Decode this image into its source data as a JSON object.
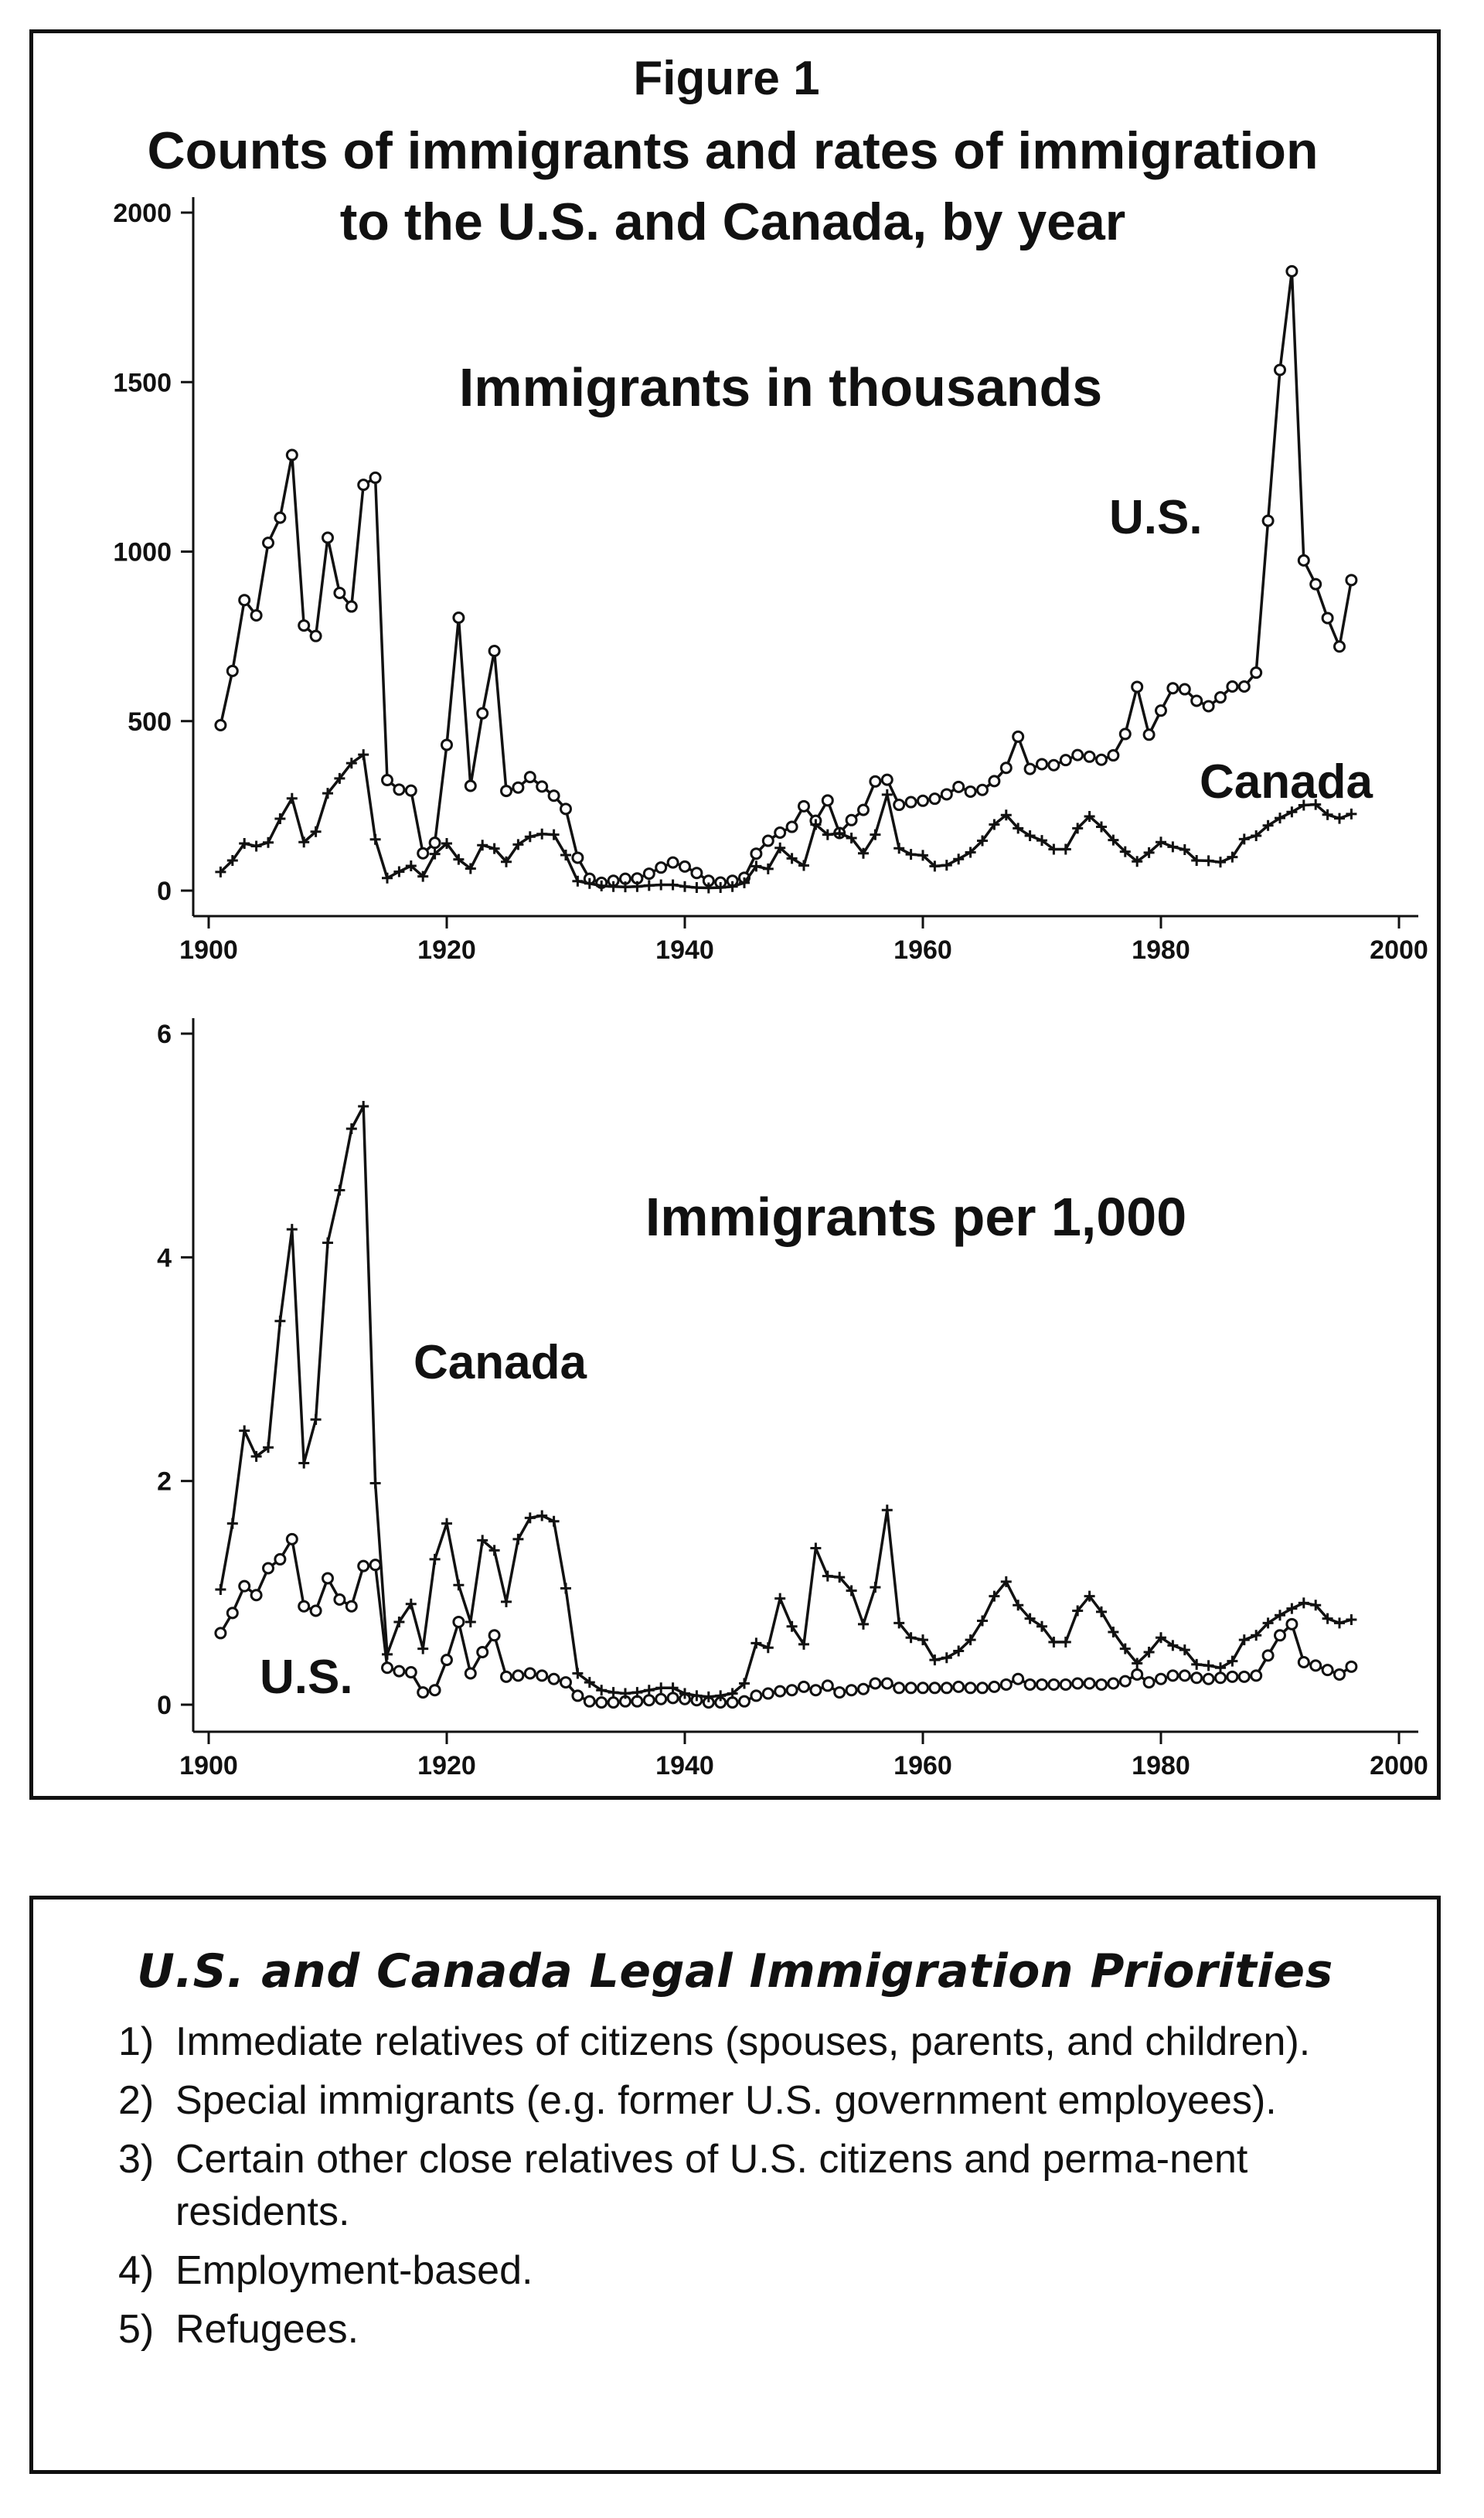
{
  "figure": {
    "title_line1": "Figure 1",
    "title_line2": "Counts of immigrants and rates of immigration",
    "title_line3": "to the U.S. and Canada, by year"
  },
  "chart_data": [
    {
      "type": "line",
      "title": "Immigrants in thousands",
      "xlim": [
        1900,
        2000
      ],
      "ylim": [
        0,
        2000
      ],
      "xticks": [
        "1900",
        "1920",
        "1940",
        "1960",
        "1980",
        "2000"
      ],
      "yticks": [
        "0",
        "500",
        "1000",
        "1500",
        "2000"
      ],
      "grid": false,
      "series": [
        {
          "name": "U.S.",
          "marker": "circle",
          "x": [
            1901,
            1902,
            1903,
            1904,
            1905,
            1906,
            1907,
            1908,
            1909,
            1910,
            1911,
            1912,
            1913,
            1914,
            1915,
            1916,
            1917,
            1918,
            1919,
            1920,
            1921,
            1922,
            1923,
            1924,
            1925,
            1926,
            1927,
            1928,
            1929,
            1930,
            1931,
            1932,
            1933,
            1934,
            1935,
            1936,
            1937,
            1938,
            1939,
            1940,
            1941,
            1942,
            1943,
            1944,
            1945,
            1946,
            1947,
            1948,
            1949,
            1950,
            1951,
            1952,
            1953,
            1954,
            1955,
            1956,
            1957,
            1958,
            1959,
            1960,
            1961,
            1962,
            1963,
            1964,
            1965,
            1966,
            1967,
            1968,
            1969,
            1970,
            1971,
            1972,
            1973,
            1974,
            1975,
            1976,
            1977,
            1978,
            1979,
            1980,
            1981,
            1982,
            1983,
            1984,
            1985,
            1986,
            1987,
            1988,
            1989,
            1990,
            1991,
            1992,
            1993,
            1994,
            1995,
            1996
          ],
          "y": [
            488,
            648,
            857,
            812,
            1026,
            1100,
            1285,
            782,
            751,
            1041,
            878,
            838,
            1197,
            1218,
            326,
            298,
            295,
            110,
            141,
            430,
            805,
            309,
            523,
            707,
            294,
            304,
            335,
            307,
            280,
            241,
            97,
            35,
            23,
            29,
            35,
            36,
            50,
            68,
            83,
            71,
            52,
            29,
            24,
            29,
            38,
            109,
            147,
            171,
            188,
            249,
            206,
            266,
            170,
            208,
            238,
            322,
            327,
            253,
            261,
            265,
            271,
            284,
            306,
            292,
            297,
            323,
            362,
            454,
            359,
            373,
            370,
            385,
            400,
            395,
            386,
            399,
            462,
            601,
            460,
            531,
            597,
            594,
            560,
            544,
            570,
            602,
            602,
            643,
            1091,
            1536,
            1827,
            974,
            904,
            804,
            720,
            916
          ]
        },
        {
          "name": "Canada",
          "marker": "plus",
          "x": [
            1901,
            1902,
            1903,
            1904,
            1905,
            1906,
            1907,
            1908,
            1909,
            1910,
            1911,
            1912,
            1913,
            1914,
            1915,
            1916,
            1917,
            1918,
            1919,
            1920,
            1921,
            1922,
            1923,
            1924,
            1925,
            1926,
            1927,
            1928,
            1929,
            1930,
            1931,
            1932,
            1933,
            1934,
            1935,
            1936,
            1937,
            1938,
            1939,
            1940,
            1941,
            1942,
            1943,
            1944,
            1945,
            1946,
            1947,
            1948,
            1949,
            1950,
            1951,
            1952,
            1953,
            1954,
            1955,
            1956,
            1957,
            1958,
            1959,
            1960,
            1961,
            1962,
            1963,
            1964,
            1965,
            1966,
            1967,
            1968,
            1969,
            1970,
            1971,
            1972,
            1973,
            1974,
            1975,
            1976,
            1977,
            1978,
            1979,
            1980,
            1981,
            1982,
            1983,
            1984,
            1985,
            1986,
            1987,
            1988,
            1989,
            1990,
            1991,
            1992,
            1993,
            1994,
            1995,
            1996
          ],
          "y": [
            55,
            89,
            139,
            131,
            142,
            212,
            272,
            143,
            174,
            287,
            331,
            376,
            401,
            151,
            37,
            56,
            73,
            42,
            108,
            139,
            92,
            65,
            134,
            124,
            85,
            136,
            159,
            167,
            165,
            105,
            28,
            21,
            14,
            12,
            11,
            12,
            15,
            17,
            17,
            12,
            9,
            8,
            9,
            12,
            23,
            72,
            64,
            126,
            95,
            74,
            195,
            165,
            169,
            155,
            110,
            165,
            283,
            125,
            107,
            104,
            72,
            75,
            93,
            113,
            147,
            195,
            223,
            184,
            162,
            148,
            122,
            122,
            184,
            219,
            188,
            149,
            115,
            86,
            112,
            143,
            129,
            121,
            89,
            88,
            84,
            99,
            152,
            162,
            192,
            214,
            232,
            252,
            254,
            224,
            213,
            226
          ]
        }
      ]
    },
    {
      "type": "line",
      "title": "Immigrants per 1,000",
      "xlim": [
        1900,
        2000
      ],
      "ylim": [
        0,
        6
      ],
      "xticks": [
        "1900",
        "1920",
        "1940",
        "1960",
        "1980",
        "2000"
      ],
      "yticks": [
        "0",
        "2",
        "4",
        "6"
      ],
      "grid": false,
      "series": [
        {
          "name": "U.S.",
          "marker": "circle",
          "x": [
            1901,
            1902,
            1903,
            1904,
            1905,
            1906,
            1907,
            1908,
            1909,
            1910,
            1911,
            1912,
            1913,
            1914,
            1915,
            1916,
            1917,
            1918,
            1919,
            1920,
            1921,
            1922,
            1923,
            1924,
            1925,
            1926,
            1927,
            1928,
            1929,
            1930,
            1931,
            1932,
            1933,
            1934,
            1935,
            1936,
            1937,
            1938,
            1939,
            1940,
            1941,
            1942,
            1943,
            1944,
            1945,
            1946,
            1947,
            1948,
            1949,
            1950,
            1951,
            1952,
            1953,
            1954,
            1955,
            1956,
            1957,
            1958,
            1959,
            1960,
            1961,
            1962,
            1963,
            1964,
            1965,
            1966,
            1967,
            1968,
            1969,
            1970,
            1971,
            1972,
            1973,
            1974,
            1975,
            1976,
            1977,
            1978,
            1979,
            1980,
            1981,
            1982,
            1983,
            1984,
            1985,
            1986,
            1987,
            1988,
            1989,
            1990,
            1991,
            1992,
            1993,
            1994,
            1995,
            1996
          ],
          "y": [
            0.64,
            0.82,
            1.06,
            0.98,
            1.22,
            1.3,
            1.48,
            0.88,
            0.84,
            1.13,
            0.94,
            0.88,
            1.24,
            1.25,
            0.33,
            0.3,
            0.29,
            0.11,
            0.13,
            0.4,
            0.74,
            0.28,
            0.47,
            0.62,
            0.25,
            0.26,
            0.28,
            0.26,
            0.23,
            0.2,
            0.08,
            0.03,
            0.02,
            0.02,
            0.03,
            0.03,
            0.04,
            0.05,
            0.06,
            0.05,
            0.04,
            0.02,
            0.02,
            0.02,
            0.03,
            0.08,
            0.1,
            0.12,
            0.13,
            0.16,
            0.13,
            0.17,
            0.11,
            0.13,
            0.14,
            0.19,
            0.19,
            0.15,
            0.15,
            0.15,
            0.15,
            0.15,
            0.16,
            0.15,
            0.15,
            0.16,
            0.18,
            0.23,
            0.18,
            0.18,
            0.18,
            0.18,
            0.19,
            0.19,
            0.18,
            0.19,
            0.21,
            0.27,
            0.2,
            0.23,
            0.26,
            0.26,
            0.24,
            0.23,
            0.24,
            0.25,
            0.25,
            0.26,
            0.44,
            0.62,
            0.72,
            0.38,
            0.35,
            0.31,
            0.27,
            0.34
          ]
        },
        {
          "name": "Canada",
          "marker": "plus",
          "x": [
            1901,
            1902,
            1903,
            1904,
            1905,
            1906,
            1907,
            1908,
            1909,
            1910,
            1911,
            1912,
            1913,
            1914,
            1915,
            1916,
            1917,
            1918,
            1919,
            1920,
            1921,
            1922,
            1923,
            1924,
            1925,
            1926,
            1927,
            1928,
            1929,
            1930,
            1931,
            1932,
            1933,
            1934,
            1935,
            1936,
            1937,
            1938,
            1939,
            1940,
            1941,
            1942,
            1943,
            1944,
            1945,
            1946,
            1947,
            1948,
            1949,
            1950,
            1951,
            1952,
            1953,
            1954,
            1955,
            1956,
            1957,
            1958,
            1959,
            1960,
            1961,
            1962,
            1963,
            1964,
            1965,
            1966,
            1967,
            1968,
            1969,
            1970,
            1971,
            1972,
            1973,
            1974,
            1975,
            1976,
            1977,
            1978,
            1979,
            1980,
            1981,
            1982,
            1983,
            1984,
            1985,
            1986,
            1987,
            1988,
            1989,
            1990,
            1991,
            1992,
            1993,
            1994,
            1995,
            1996
          ],
          "y": [
            1.03,
            1.62,
            2.45,
            2.22,
            2.3,
            3.43,
            4.25,
            2.16,
            2.55,
            4.13,
            4.6,
            5.15,
            5.35,
            1.98,
            0.45,
            0.74,
            0.9,
            0.5,
            1.3,
            1.62,
            1.07,
            0.74,
            1.47,
            1.38,
            0.92,
            1.48,
            1.67,
            1.69,
            1.64,
            1.04,
            0.28,
            0.2,
            0.13,
            0.11,
            0.1,
            0.11,
            0.13,
            0.15,
            0.15,
            0.1,
            0.08,
            0.07,
            0.08,
            0.1,
            0.19,
            0.55,
            0.51,
            0.95,
            0.7,
            0.54,
            1.4,
            1.15,
            1.14,
            1.02,
            0.72,
            1.05,
            1.74,
            0.73,
            0.6,
            0.58,
            0.4,
            0.42,
            0.48,
            0.58,
            0.75,
            0.97,
            1.1,
            0.89,
            0.77,
            0.7,
            0.56,
            0.56,
            0.84,
            0.97,
            0.83,
            0.65,
            0.5,
            0.37,
            0.47,
            0.6,
            0.53,
            0.49,
            0.36,
            0.35,
            0.33,
            0.39,
            0.58,
            0.62,
            0.73,
            0.8,
            0.86,
            0.91,
            0.89,
            0.77,
            0.73,
            0.76
          ]
        }
      ]
    }
  ],
  "panels": [
    {
      "title": "Immigrants in thousands",
      "label_us": "U.S.",
      "label_canada": "Canada",
      "yticks": [
        "0",
        "500",
        "1000",
        "1500",
        "2000"
      ],
      "xticks": [
        "1900",
        "1920",
        "1940",
        "1960",
        "1980",
        "2000"
      ]
    },
    {
      "title": "Immigrants per 1,000",
      "label_us": "U.S.",
      "label_canada": "Canada",
      "yticks": [
        "0",
        "2",
        "4",
        "6"
      ],
      "xticks": [
        "1900",
        "1920",
        "1940",
        "1960",
        "1980",
        "2000"
      ]
    }
  ],
  "priorities": {
    "title": "U.S. and Canada Legal Immigration Priorities",
    "items": [
      {
        "num": "1)",
        "text": "Immediate relatives of citizens (spouses, parents, and children)."
      },
      {
        "num": "2)",
        "text": "Special immigrants (e.g. former U.S. government employees)."
      },
      {
        "num": "3)",
        "text": "Certain other close relatives of U.S. citizens and perma-nent residents."
      },
      {
        "num": "4)",
        "text": "Employment-based."
      },
      {
        "num": "5)",
        "text": "Refugees."
      }
    ]
  }
}
